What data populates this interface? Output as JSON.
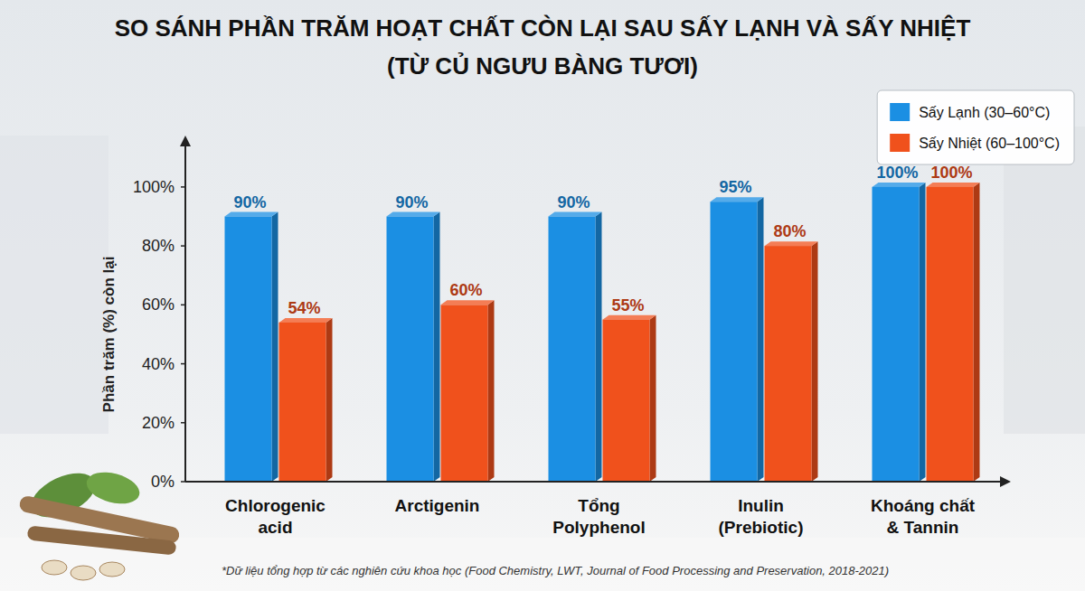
{
  "chart_data": {
    "type": "bar",
    "title": "SO SÁNH PHẦN TRĂM HOẠT CHẤT CÒN LẠI SAU SẤY LẠNH VÀ SẤY NHIỆT",
    "subtitle": "(TỪ CỦ NGƯU BÀNG TƯƠI)",
    "ylabel": "Phần trăm (%) còn lại",
    "categories": [
      "Chlorogenic acid",
      "Arctigenin",
      "Tổng Polyphenol",
      "Inulin (Prebiotic)",
      "Khoáng chất & Tannin"
    ],
    "series": [
      {
        "name": "Sấy Lạnh (30–60°C)",
        "color": "#1b8fe3",
        "values": [
          90,
          90,
          90,
          95,
          100
        ],
        "value_labels": [
          "90%",
          "90%",
          "90%",
          "95%",
          "100%"
        ]
      },
      {
        "name": "Sấy Nhiệt (60–100°C)",
        "color": "#f0511c",
        "values": [
          54,
          60,
          55,
          80,
          100
        ],
        "value_labels": [
          "54%",
          "60%",
          "55%",
          "80%",
          "100%"
        ]
      }
    ],
    "ylim": [
      0,
      115
    ],
    "yticks": [
      {
        "value": 0,
        "label": "0%"
      },
      {
        "value": 20,
        "label": "20%"
      },
      {
        "value": 40,
        "label": "40%"
      },
      {
        "value": 60,
        "label": "60%"
      },
      {
        "value": 80,
        "label": "80%"
      },
      {
        "value": 100,
        "label": "100%"
      }
    ],
    "grid": false,
    "legend": "upper right",
    "data_labels": true,
    "source": "*Dữ liệu tổng hợp từ các nghiên cứu khoa học (Food Chemistry, LWT, Journal of Food Processing and Preservation, 2018-2021)"
  }
}
